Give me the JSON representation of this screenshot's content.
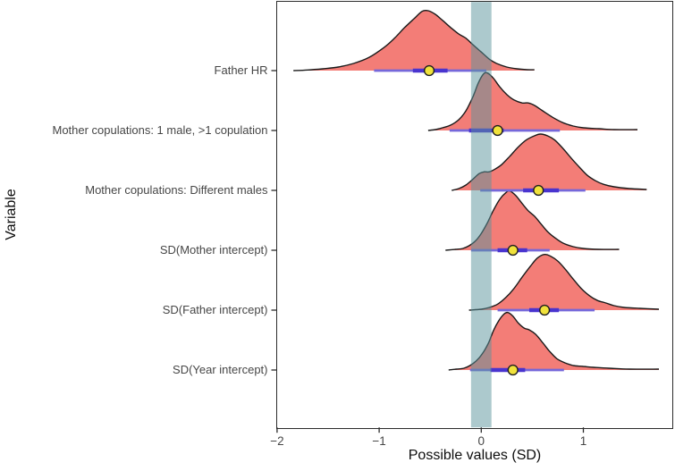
{
  "axes": {
    "x_title": "Possible values (SD)",
    "y_title": "Variable",
    "x_tick_labels": [
      "−2",
      "−1",
      "0",
      "1"
    ],
    "x_tick_values": [
      -2,
      -1,
      0,
      1
    ]
  },
  "colors": {
    "density_fill": "rgba(235,45,35,0.62)",
    "density_stroke": "#1a1a1a",
    "interval_thin": "#7668DA",
    "interval_thick": "#4934CF",
    "point_fill": "#F0E23C",
    "point_stroke": "#1f1f1f",
    "rope_band": "rgba(89,147,155,0.5)",
    "axis_text": "#464646",
    "tick_mark": "#2b2b2b"
  },
  "chart_data": {
    "type": "area",
    "subtype": "ridgeline-halfeye-posterior",
    "title": "",
    "xlabel": "Possible values (SD)",
    "ylabel": "Variable",
    "xlim": [
      -2.05,
      1.87
    ],
    "grid": false,
    "legend": "none",
    "rope_interval": [
      -0.1,
      0.1
    ],
    "rows": [
      {
        "label": "Father HR",
        "median": -0.51,
        "interval66": [
          -0.67,
          -0.33
        ],
        "interval95": [
          -1.05,
          0.05
        ],
        "density": {
          "x": [
            -1.84,
            -1.7,
            -1.55,
            -1.4,
            -1.25,
            -1.1,
            -0.95,
            -0.85,
            -0.75,
            -0.65,
            -0.58,
            -0.52,
            -0.45,
            -0.38,
            -0.3,
            -0.22,
            -0.15,
            -0.08,
            0,
            0.08,
            0.15,
            0.25,
            0.35,
            0.45,
            0.52
          ],
          "h": [
            0,
            0.01,
            0.03,
            0.06,
            0.12,
            0.22,
            0.39,
            0.54,
            0.72,
            0.88,
            0.99,
            1,
            0.94,
            0.84,
            0.72,
            0.61,
            0.54,
            0.43,
            0.31,
            0.19,
            0.12,
            0.06,
            0.03,
            0.015,
            0.015
          ]
        }
      },
      {
        "label": "Mother copulations: 1 male, >1 copulation",
        "median": 0.16,
        "interval66": [
          -0.12,
          0.22
        ],
        "interval95": [
          -0.31,
          0.77
        ],
        "density": {
          "x": [
            -0.52,
            -0.45,
            -0.38,
            -0.3,
            -0.22,
            -0.15,
            -0.08,
            -0.03,
            0.02,
            0.06,
            0.12,
            0.18,
            0.25,
            0.32,
            0.4,
            0.46,
            0.52,
            0.6,
            0.7,
            0.8,
            0.9,
            1,
            1.15,
            1.3,
            1.53
          ],
          "h": [
            0,
            0.015,
            0.045,
            0.09,
            0.18,
            0.33,
            0.57,
            0.79,
            0.94,
            0.96,
            0.87,
            0.73,
            0.6,
            0.51,
            0.46,
            0.46,
            0.42,
            0.33,
            0.22,
            0.13,
            0.075,
            0.045,
            0.03,
            0.015,
            0.015
          ]
        }
      },
      {
        "label": "Mother copulations: Different males",
        "median": 0.56,
        "interval66": [
          0.41,
          0.76
        ],
        "interval95": [
          -0.01,
          1.02
        ],
        "density": {
          "x": [
            -0.29,
            -0.22,
            -0.15,
            -0.08,
            -0.02,
            0.03,
            0.08,
            0.14,
            0.2,
            0.28,
            0.36,
            0.44,
            0.52,
            0.58,
            0.65,
            0.72,
            0.8,
            0.88,
            0.96,
            1.04,
            1.12,
            1.2,
            1.3,
            1.45,
            1.62
          ],
          "h": [
            0,
            0.03,
            0.09,
            0.19,
            0.28,
            0.31,
            0.31,
            0.36,
            0.43,
            0.57,
            0.72,
            0.84,
            0.91,
            0.94,
            0.91,
            0.84,
            0.7,
            0.54,
            0.39,
            0.25,
            0.16,
            0.1,
            0.06,
            0.03,
            0.015
          ]
        }
      },
      {
        "label": "SD(Mother intercept)",
        "median": 0.31,
        "interval66": [
          0.16,
          0.45
        ],
        "interval95": [
          -0.1,
          0.67
        ],
        "density": {
          "x": [
            -0.35,
            -0.25,
            -0.18,
            -0.12,
            -0.06,
            0,
            0.06,
            0.12,
            0.18,
            0.24,
            0.28,
            0.34,
            0.4,
            0.46,
            0.52,
            0.58,
            0.65,
            0.72,
            0.8,
            0.9,
            1,
            1.15,
            1.35
          ],
          "h": [
            0,
            0.015,
            0.03,
            0.075,
            0.15,
            0.28,
            0.46,
            0.67,
            0.85,
            0.96,
            0.99,
            0.91,
            0.78,
            0.66,
            0.57,
            0.45,
            0.31,
            0.21,
            0.12,
            0.06,
            0.03,
            0.015,
            0.015
          ]
        }
      },
      {
        "label": "SD(Father intercept)",
        "median": 0.62,
        "interval66": [
          0.47,
          0.76
        ],
        "interval95": [
          0.16,
          1.11
        ],
        "density": {
          "x": [
            -0.12,
            0,
            0.08,
            0.16,
            0.24,
            0.32,
            0.4,
            0.48,
            0.55,
            0.62,
            0.68,
            0.75,
            0.82,
            0.9,
            0.98,
            1.06,
            1.14,
            1.22,
            1.3,
            1.4,
            1.55,
            1.74
          ],
          "h": [
            0,
            0.015,
            0.045,
            0.1,
            0.21,
            0.36,
            0.55,
            0.73,
            0.87,
            0.93,
            0.9,
            0.82,
            0.69,
            0.52,
            0.36,
            0.24,
            0.16,
            0.12,
            0.075,
            0.045,
            0.03,
            0.015
          ]
        }
      },
      {
        "label": "SD(Year intercept)",
        "median": 0.31,
        "interval66": [
          0.09,
          0.43
        ],
        "interval95": [
          -0.11,
          0.81
        ],
        "density": {
          "x": [
            -0.32,
            -0.24,
            -0.17,
            -0.11,
            -0.05,
            0.01,
            0.07,
            0.12,
            0.17,
            0.22,
            0.26,
            0.31,
            0.36,
            0.42,
            0.47,
            0.53,
            0.6,
            0.67,
            0.74,
            0.82,
            0.9,
            1,
            1.1,
            1.25,
            1.45,
            1.74
          ],
          "h": [
            0,
            0.015,
            0.03,
            0.075,
            0.15,
            0.27,
            0.45,
            0.66,
            0.82,
            0.93,
            0.96,
            0.9,
            0.79,
            0.7,
            0.67,
            0.6,
            0.46,
            0.31,
            0.19,
            0.12,
            0.075,
            0.06,
            0.045,
            0.03,
            0.015,
            0.015
          ]
        }
      }
    ]
  }
}
